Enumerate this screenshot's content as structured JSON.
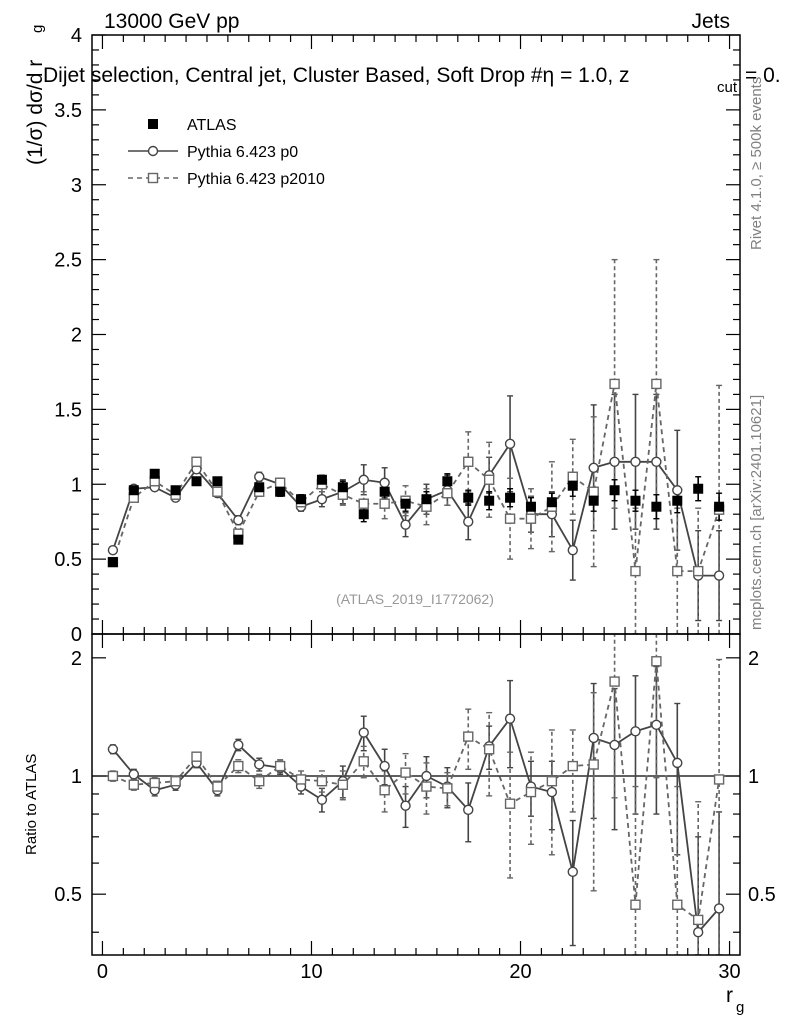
{
  "header": {
    "energy_label": "13000 GeV pp",
    "category_label": "Jets",
    "selection_line": "Dijet selection, Central jet, Cluster Based, Soft Drop #η = 1.0, z",
    "zcut_sub": "cut",
    "selection_tail": " = 0.",
    "analysis_id": "(ATLAS_2019_I1772062)"
  },
  "side_labels": {
    "rivet": "Rivet 4.1.0, ≥ 500k events",
    "mcplots": "mcplots.cern.ch [arXiv:2401.10621]"
  },
  "colors": {
    "data": "#000000",
    "p0": "#444444",
    "p2010": "#666666"
  },
  "chart_data": [
    {
      "type": "scatter",
      "panel": "main",
      "ylabel": "(1/σ) dσ/d r",
      "ylabel_sub": "g",
      "ylim": [
        0,
        4
      ],
      "xlim": [
        -0.5,
        30.5
      ],
      "y_ticks": [
        0,
        0.5,
        1,
        1.5,
        2,
        2.5,
        3,
        3.5,
        4
      ],
      "y_tick_labels": [
        "0",
        "0.5",
        "1",
        "1.5",
        "2",
        "2.5",
        "3",
        "3.5",
        "4"
      ],
      "legend": [
        "ATLAS",
        "Pythia 6.423 p0",
        "Pythia 6.423 p2010"
      ],
      "legend_location": "top-left",
      "x": [
        0.5,
        1.5,
        2.5,
        3.5,
        4.5,
        5.5,
        6.5,
        7.5,
        8.5,
        9.5,
        10.5,
        11.5,
        12.5,
        13.5,
        14.5,
        15.5,
        16.5,
        17.5,
        18.5,
        19.5,
        20.5,
        21.5,
        22.5,
        23.5,
        24.5,
        25.5,
        26.5,
        27.5,
        28.5,
        29.5
      ],
      "series": [
        {
          "name": "ATLAS",
          "values": [
            0.48,
            0.96,
            1.07,
            0.96,
            1.02,
            1.02,
            0.63,
            0.98,
            0.95,
            0.9,
            1.03,
            0.98,
            0.8,
            0.95,
            0.87,
            0.9,
            1.02,
            0.91,
            0.89,
            0.91,
            0.85,
            0.88,
            0.99,
            0.89,
            0.96,
            0.89,
            0.85,
            0.89,
            0.97,
            0.85
          ],
          "errors": [
            0.02,
            0.02,
            0.02,
            0.02,
            0.02,
            0.02,
            0.02,
            0.02,
            0.03,
            0.03,
            0.03,
            0.04,
            0.05,
            0.05,
            0.05,
            0.05,
            0.05,
            0.05,
            0.06,
            0.06,
            0.06,
            0.06,
            0.07,
            0.07,
            0.07,
            0.07,
            0.08,
            0.08,
            0.08,
            0.09
          ]
        },
        {
          "name": "Pythia 6.423 p0",
          "values": [
            0.56,
            0.97,
            0.98,
            0.91,
            1.1,
            0.94,
            0.76,
            1.05,
            1.0,
            0.85,
            0.9,
            0.95,
            1.03,
            1.01,
            0.73,
            0.9,
            0.96,
            0.75,
            1.06,
            1.27,
            0.8,
            0.8,
            0.56,
            1.11,
            1.15,
            1.15,
            1.15,
            0.96,
            0.39,
            0.39
          ],
          "errors": [
            0.02,
            0.02,
            0.02,
            0.02,
            0.02,
            0.02,
            0.03,
            0.03,
            0.03,
            0.03,
            0.05,
            0.08,
            0.1,
            0.1,
            0.08,
            0.1,
            0.1,
            0.12,
            0.12,
            0.32,
            0.12,
            0.15,
            0.2,
            0.42,
            0.45,
            0.45,
            0.45,
            0.4,
            0.3,
            0.3
          ]
        },
        {
          "name": "Pythia 6.423 p2010",
          "values": [
            0.48,
            0.91,
            1.02,
            0.93,
            1.15,
            0.95,
            0.67,
            0.95,
            1.01,
            0.88,
            1.0,
            0.93,
            0.87,
            0.87,
            0.89,
            0.85,
            0.94,
            1.15,
            1.03,
            0.77,
            0.77,
            0.85,
            1.05,
            0.95,
            1.67,
            0.42,
            1.67,
            0.42,
            0.42,
            0.83
          ],
          "errors": [
            0.02,
            0.02,
            0.02,
            0.02,
            0.02,
            0.02,
            0.03,
            0.03,
            0.03,
            0.04,
            0.05,
            0.07,
            0.08,
            0.1,
            0.1,
            0.12,
            0.08,
            0.2,
            0.25,
            0.27,
            0.2,
            0.3,
            0.25,
            0.5,
            0.83,
            0.42,
            0.83,
            0.42,
            0.42,
            0.83
          ]
        }
      ]
    },
    {
      "type": "scatter",
      "panel": "ratio",
      "ylabel": "Ratio to ATLAS",
      "xlabel": "r",
      "xlabel_sub": "g",
      "ylim": [
        0.35,
        2.3
      ],
      "xlim": [
        -0.5,
        30.5
      ],
      "x_ticks": [
        0,
        10,
        20,
        30
      ],
      "x_tick_labels": [
        "0",
        "10",
        "20",
        "30"
      ],
      "y_ticks": [
        0.5,
        1,
        2
      ],
      "y_tick_labels": [
        "0.5",
        "1",
        "2"
      ],
      "x": [
        0.5,
        1.5,
        2.5,
        3.5,
        4.5,
        5.5,
        6.5,
        7.5,
        8.5,
        9.5,
        10.5,
        11.5,
        12.5,
        13.5,
        14.5,
        15.5,
        16.5,
        17.5,
        18.5,
        19.5,
        20.5,
        21.5,
        22.5,
        23.5,
        24.5,
        25.5,
        26.5,
        27.5,
        28.5,
        29.5
      ],
      "series": [
        {
          "name": "Pythia 6.423 p0",
          "values": [
            1.17,
            1.01,
            0.92,
            0.95,
            1.08,
            0.92,
            1.2,
            1.07,
            1.05,
            0.94,
            0.87,
            0.97,
            1.29,
            1.06,
            0.84,
            1.0,
            0.94,
            0.82,
            1.19,
            1.4,
            0.94,
            0.91,
            0.57,
            1.25,
            1.2,
            1.3,
            1.35,
            1.08,
            0.4,
            0.46
          ],
          "errors": [
            0.03,
            0.03,
            0.03,
            0.03,
            0.03,
            0.03,
            0.04,
            0.04,
            0.04,
            0.04,
            0.06,
            0.09,
            0.13,
            0.11,
            0.1,
            0.12,
            0.11,
            0.14,
            0.15,
            0.35,
            0.15,
            0.18,
            0.2,
            0.47,
            0.47,
            0.5,
            0.55,
            0.45,
            0.3,
            0.35
          ]
        },
        {
          "name": "Pythia 6.423 p2010",
          "values": [
            1.0,
            0.95,
            0.96,
            0.97,
            1.12,
            0.94,
            1.06,
            0.97,
            1.06,
            0.98,
            0.97,
            0.95,
            1.09,
            0.92,
            1.02,
            0.94,
            0.93,
            1.26,
            1.17,
            0.85,
            0.91,
            0.97,
            1.06,
            1.07,
            1.74,
            0.47,
            1.96,
            0.47,
            0.43,
            0.98
          ],
          "errors": [
            0.03,
            0.03,
            0.03,
            0.03,
            0.03,
            0.03,
            0.04,
            0.04,
            0.04,
            0.05,
            0.06,
            0.08,
            0.1,
            0.11,
            0.12,
            0.14,
            0.09,
            0.22,
            0.28,
            0.3,
            0.24,
            0.34,
            0.25,
            0.56,
            0.86,
            0.47,
            0.97,
            0.47,
            0.43,
            1.0
          ]
        }
      ]
    }
  ]
}
